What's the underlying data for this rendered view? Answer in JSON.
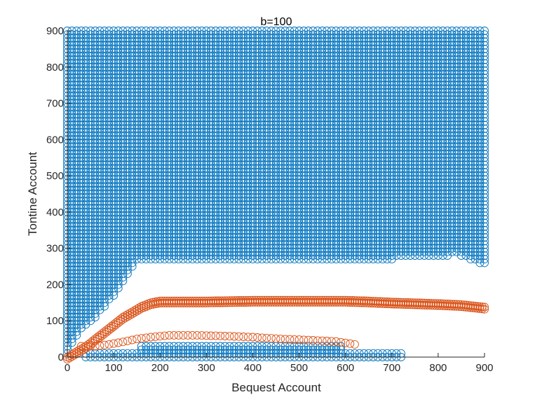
{
  "chart_data": {
    "type": "scatter",
    "title": "b=100",
    "xlabel": "Bequest Account",
    "ylabel": "Tontine Account",
    "xlim": [
      0,
      900
    ],
    "ylim": [
      0,
      900
    ],
    "xticks": [
      "0",
      "100",
      "200",
      "300",
      "400",
      "500",
      "600",
      "700",
      "800",
      "900"
    ],
    "yticks": [
      "0",
      "100",
      "200",
      "300",
      "400",
      "500",
      "600",
      "700",
      "800",
      "900"
    ],
    "grid": false,
    "legend": "none",
    "marker": "open-circle",
    "colors": {
      "blue": "#0072bd",
      "orange": "#d95319"
    },
    "series": [
      {
        "color": "#0072bd",
        "description_regions": {
          "upper_region_lower_boundary": [
            [
              0,
              10
            ],
            [
              20,
              60
            ],
            [
              60,
              110
            ],
            [
              100,
              170
            ],
            [
              130,
              230
            ],
            [
              150,
              265
            ],
            [
              200,
              262
            ],
            [
              300,
              265
            ],
            [
              400,
              265
            ],
            [
              500,
              265
            ],
            [
              600,
              270
            ],
            [
              700,
              270
            ],
            [
              800,
              272
            ],
            [
              840,
              285
            ],
            [
              870,
              270
            ],
            [
              900,
              255
            ]
          ],
          "upper_region_top": 900,
          "bottom_band": {
            "y": [
              0,
              30
            ],
            "x": [
              0,
              720
            ]
          }
        }
      },
      {
        "color": "#d95319",
        "main_curve": [
          [
            0,
            0
          ],
          [
            20,
            15
          ],
          [
            40,
            30
          ],
          [
            60,
            50
          ],
          [
            80,
            70
          ],
          [
            100,
            90
          ],
          [
            120,
            110
          ],
          [
            140,
            125
          ],
          [
            160,
            140
          ],
          [
            180,
            150
          ],
          [
            200,
            155
          ],
          [
            250,
            155
          ],
          [
            300,
            155
          ],
          [
            350,
            156
          ],
          [
            400,
            157
          ],
          [
            450,
            157
          ],
          [
            500,
            157
          ],
          [
            550,
            157
          ],
          [
            600,
            157
          ],
          [
            650,
            155
          ],
          [
            700,
            152
          ],
          [
            750,
            150
          ],
          [
            800,
            148
          ],
          [
            850,
            145
          ],
          [
            900,
            138
          ]
        ],
        "secondary_curve": [
          [
            30,
            30
          ],
          [
            60,
            30
          ],
          [
            90,
            35
          ],
          [
            120,
            42
          ],
          [
            150,
            50
          ],
          [
            180,
            55
          ],
          [
            220,
            60
          ],
          [
            280,
            60
          ],
          [
            340,
            58
          ],
          [
            400,
            55
          ],
          [
            460,
            50
          ],
          [
            520,
            47
          ],
          [
            580,
            43
          ],
          [
            620,
            35
          ]
        ]
      }
    ]
  }
}
